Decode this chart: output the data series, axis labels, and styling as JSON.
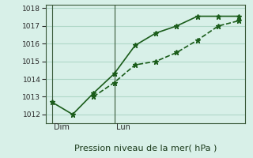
{
  "title": "",
  "xlabel": "Pression niveau de la mer( hPa )",
  "ylabel": "",
  "background_color": "#d8f0e8",
  "grid_color": "#b0d8c8",
  "line_color": "#1a5c1a",
  "line1_x": [
    0,
    1,
    2,
    3,
    4,
    5,
    6,
    7,
    8,
    9
  ],
  "line1_y": [
    1012.7,
    1012.0,
    1013.2,
    1014.3,
    1015.9,
    1016.6,
    1017.0,
    1017.55,
    1017.55,
    1017.55
  ],
  "line2_x": [
    2,
    3,
    4,
    5,
    6,
    7,
    8,
    9
  ],
  "line2_y": [
    1013.0,
    1013.8,
    1014.8,
    1015.0,
    1015.5,
    1016.2,
    1017.0,
    1017.3
  ],
  "ylim": [
    1011.5,
    1018.2
  ],
  "yticks": [
    1012,
    1013,
    1014,
    1015,
    1016,
    1017,
    1018
  ],
  "vline_positions": [
    0,
    3
  ],
  "vline_labels": [
    "Dim",
    "Lun"
  ],
  "total_points": 10
}
